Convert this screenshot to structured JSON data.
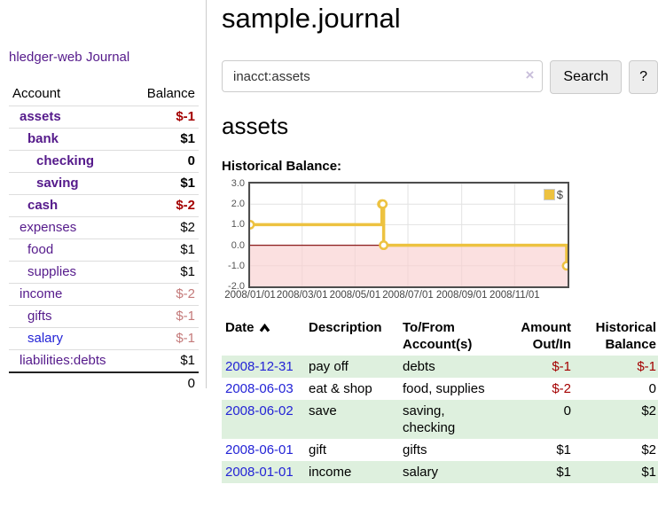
{
  "colors": {
    "purple": "#551a8b",
    "blue": "#2323d6",
    "negative": "#a40000",
    "negative_muted": "#c47a7a",
    "row_green": "#def0de"
  },
  "app": {
    "title": "hledger-web"
  },
  "sidebar": {
    "journal_label": "Journal",
    "headers": {
      "account": "Account",
      "balance": "Balance"
    },
    "accounts": [
      {
        "name": "assets",
        "balance": "$-1",
        "indent": 1,
        "bold": true,
        "name_color": "purple",
        "balance_color": "negative"
      },
      {
        "name": "bank",
        "balance": "$1",
        "indent": 2,
        "bold": true,
        "name_color": "purple",
        "balance_color": "black"
      },
      {
        "name": "checking",
        "balance": "0",
        "indent": 3,
        "bold": true,
        "name_color": "purple",
        "balance_color": "black"
      },
      {
        "name": "saving",
        "balance": "$1",
        "indent": 3,
        "bold": true,
        "name_color": "purple",
        "balance_color": "black"
      },
      {
        "name": "cash",
        "balance": "$-2",
        "indent": 2,
        "bold": true,
        "name_color": "purple",
        "balance_color": "negative"
      },
      {
        "name": "expenses",
        "balance": "$2",
        "indent": 1,
        "bold": false,
        "name_color": "purple",
        "balance_color": "black"
      },
      {
        "name": "food",
        "balance": "$1",
        "indent": 2,
        "bold": false,
        "name_color": "purple",
        "balance_color": "black"
      },
      {
        "name": "supplies",
        "balance": "$1",
        "indent": 2,
        "bold": false,
        "name_color": "purple",
        "balance_color": "black"
      },
      {
        "name": "income",
        "balance": "$-2",
        "indent": 1,
        "bold": false,
        "name_color": "purple",
        "balance_color": "negative_muted"
      },
      {
        "name": "gifts",
        "balance": "$-1",
        "indent": 2,
        "bold": false,
        "name_color": "purple",
        "balance_color": "negative_muted"
      },
      {
        "name": "salary",
        "balance": "$-1",
        "indent": 2,
        "bold": false,
        "name_color": "blue",
        "balance_color": "negative_muted"
      },
      {
        "name": "liabilities:debts",
        "balance": "$1",
        "indent": 1,
        "bold": false,
        "name_color": "purple",
        "balance_color": "black"
      }
    ],
    "total": "0"
  },
  "main": {
    "title": "sample.journal",
    "search": {
      "value": "inacct:assets",
      "clear_symbol": "×",
      "button_label": "Search",
      "help_label": "?"
    },
    "account_heading": "assets",
    "section_label": "Historical Balance:"
  },
  "chart_data": {
    "type": "line",
    "title": "Historical Balance:",
    "series": [
      {
        "name": "$",
        "step": true,
        "points": [
          [
            "2008-01-01",
            1
          ],
          [
            "2008-06-01",
            2
          ],
          [
            "2008-06-02",
            2
          ],
          [
            "2008-06-03",
            0
          ],
          [
            "2008-12-31",
            -1
          ]
        ]
      }
    ],
    "x_range": [
      "2008-01-01",
      "2009-01-01"
    ],
    "x_ticks": [
      "2008/01/01",
      "2008/03/01",
      "2008/05/01",
      "2008/07/01",
      "2008/09/01",
      "2008/11/01"
    ],
    "y_ticks": [
      3.0,
      2.0,
      1.0,
      0.0,
      -1.0,
      -2.0
    ],
    "ylim": [
      -2,
      3
    ],
    "grid": true,
    "legend": {
      "label": "$",
      "position": "top-right"
    },
    "colors": {
      "line": "#edc240",
      "negative_region": "#f9cfcf",
      "zero_line": "#8b1a1a",
      "grid": "#e2e2e2",
      "border": "#4d4d4d"
    }
  },
  "register": {
    "headers": {
      "date": "Date",
      "description": "Description",
      "accounts": "To/From\nAccount(s)",
      "amount": "Amount\nOut/In",
      "balance": "Historical\nBalance"
    },
    "sort_icon": "chevron-up",
    "rows": [
      {
        "date": "2008-12-31",
        "description": "pay off",
        "accounts": "debts",
        "amount": "$-1",
        "amount_color": "negative",
        "balance": "$-1",
        "balance_color": "negative"
      },
      {
        "date": "2008-06-03",
        "description": "eat & shop",
        "accounts": "food, supplies",
        "amount": "$-2",
        "amount_color": "negative",
        "balance": "0",
        "balance_color": "black"
      },
      {
        "date": "2008-06-02",
        "description": "save",
        "accounts": "saving,\nchecking",
        "amount": "0",
        "amount_color": "black",
        "balance": "$2",
        "balance_color": "black"
      },
      {
        "date": "2008-06-01",
        "description": "gift",
        "accounts": "gifts",
        "amount": "$1",
        "amount_color": "black",
        "balance": "$2",
        "balance_color": "black"
      },
      {
        "date": "2008-01-01",
        "description": "income",
        "accounts": "salary",
        "amount": "$1",
        "amount_color": "black",
        "balance": "$1",
        "balance_color": "black"
      }
    ]
  }
}
